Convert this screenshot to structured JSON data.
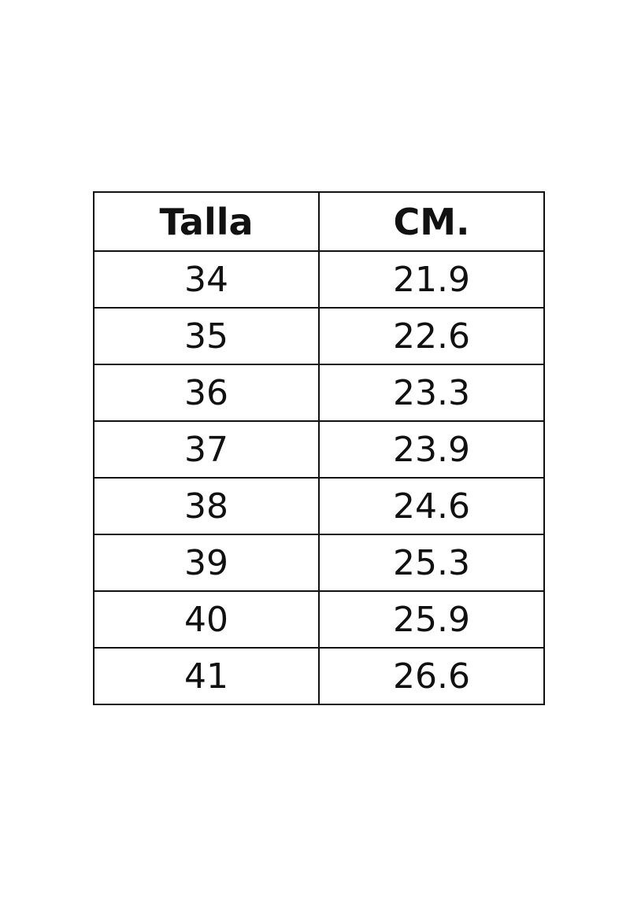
{
  "table": {
    "headers": [
      "Talla",
      "CM."
    ],
    "rows": [
      [
        "34",
        "21.9"
      ],
      [
        "35",
        "22.6"
      ],
      [
        "36",
        "23.3"
      ],
      [
        "37",
        "23.9"
      ],
      [
        "38",
        "24.6"
      ],
      [
        "39",
        "25.3"
      ],
      [
        "40",
        "25.9"
      ],
      [
        "41",
        "26.6"
      ]
    ]
  }
}
